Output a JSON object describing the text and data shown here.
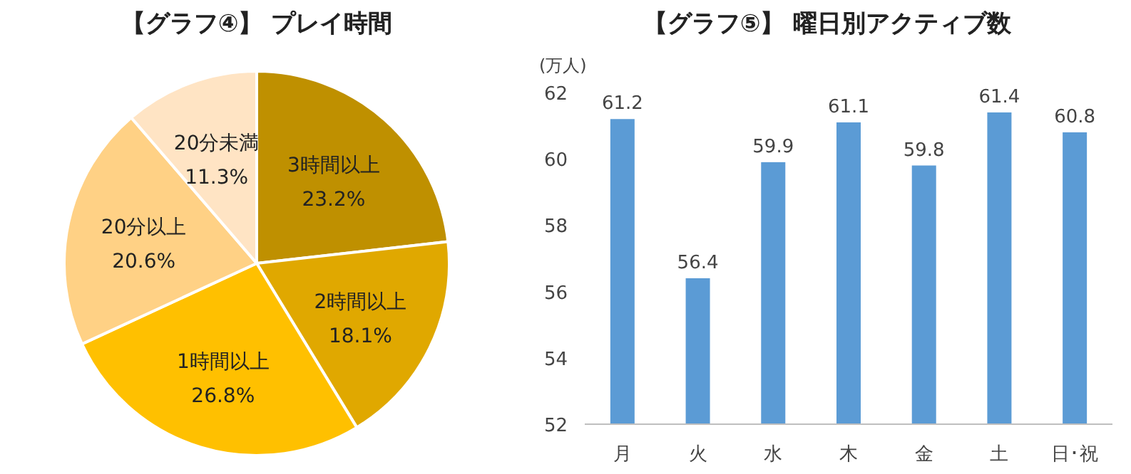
{
  "chart_data": [
    {
      "type": "pie",
      "title": "【グラフ④】 プレイ時間",
      "categories": [
        "3時間以上",
        "2時間以上",
        "1時間以上",
        "20分以上",
        "20分未満"
      ],
      "values": [
        23.2,
        18.1,
        26.8,
        20.6,
        11.3
      ],
      "value_labels": [
        "23.2%",
        "18.1%",
        "26.8%",
        "20.6%",
        "11.3%"
      ],
      "colors": [
        "#bf9000",
        "#e0a800",
        "#ffc000",
        "#ffd185",
        "#ffe4c4"
      ]
    },
    {
      "type": "bar",
      "title": "【グラフ⑤】 曜日別アクティブ数",
      "ylabel": "(万人)",
      "categories": [
        "月",
        "火",
        "水",
        "木",
        "金",
        "土",
        "日･祝"
      ],
      "values": [
        61.2,
        56.4,
        59.9,
        61.1,
        59.8,
        61.4,
        60.8
      ],
      "color": "#5b9bd5",
      "ylim": [
        52,
        62
      ],
      "yticks": [
        52,
        54,
        56,
        58,
        60,
        62
      ],
      "data_labels": true,
      "grid": false
    }
  ]
}
